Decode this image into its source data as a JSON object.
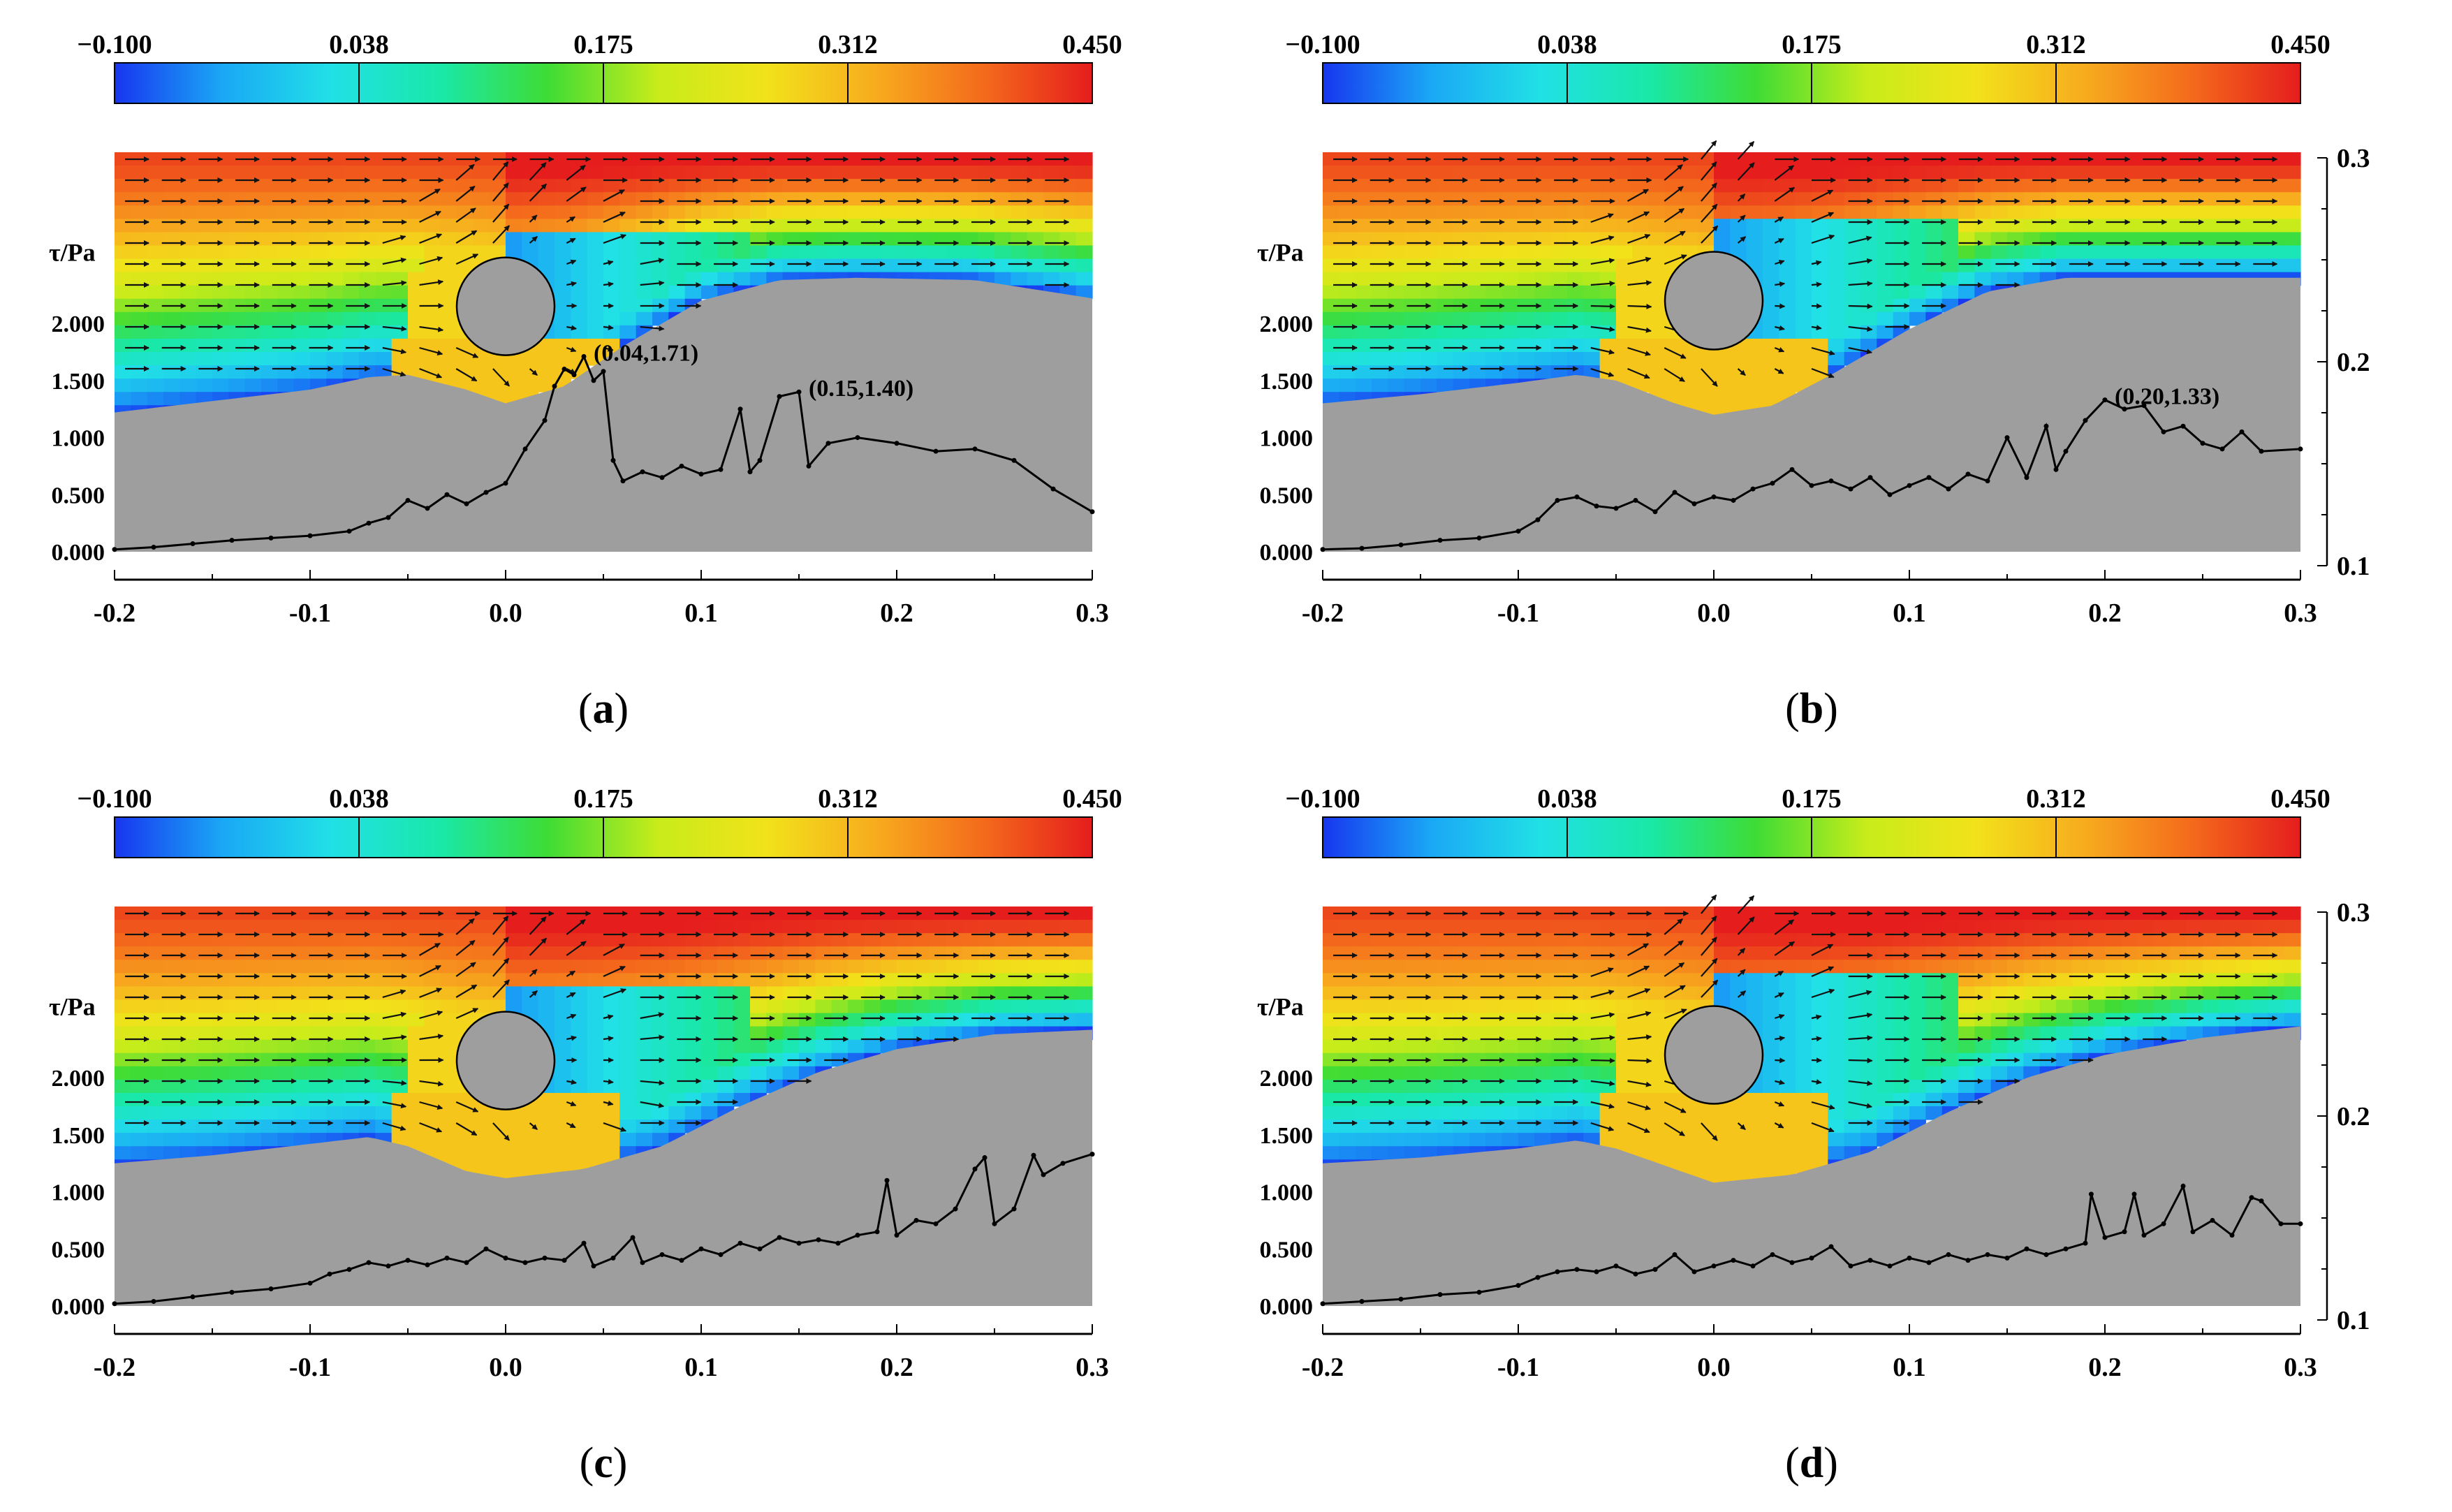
{
  "figure": {
    "description_colorbar_min_color": "#1a3cf5",
    "colors": {
      "ground": "#9e9e9e",
      "line": "#000000",
      "arrow": "#111111",
      "cmap": [
        "#1836f0",
        "#1aa8f5",
        "#21e0e6",
        "#19e8a8",
        "#3fdc35",
        "#c8ec1a",
        "#f2e21a",
        "#f7ac1e",
        "#f46a1c",
        "#e51d1d"
      ]
    }
  },
  "chart_data": [
    {
      "type": "line",
      "panel_label": "(a)",
      "panel_letter": "a",
      "colorbar": {
        "ticks": [
          "−0.100",
          "0.038",
          "0.175",
          "0.312",
          "0.450"
        ],
        "range": [
          -0.1,
          0.45
        ]
      },
      "ylabel": "τ/Pa",
      "y_ticks": [
        "0.000",
        "0.500",
        "1.000",
        "1.500",
        "2.000"
      ],
      "x_ticks": [
        "-0.2",
        "-0.1",
        "0.0",
        "0.1",
        "0.2",
        "0.3"
      ],
      "xlim": [
        -0.2,
        0.3
      ],
      "ylim": [
        0,
        3.5
      ],
      "right_axis": null,
      "cylinder": {
        "x": 0.0,
        "y": 2.15,
        "r": 0.025
      },
      "bed": [
        [
          -0.2,
          1.22
        ],
        [
          -0.15,
          1.32
        ],
        [
          -0.1,
          1.42
        ],
        [
          -0.07,
          1.53
        ],
        [
          -0.05,
          1.55
        ],
        [
          -0.02,
          1.42
        ],
        [
          0.0,
          1.3
        ],
        [
          0.03,
          1.45
        ],
        [
          0.06,
          1.8
        ],
        [
          0.1,
          2.2
        ],
        [
          0.14,
          2.38
        ],
        [
          0.18,
          2.4
        ],
        [
          0.24,
          2.38
        ],
        [
          0.3,
          2.22
        ]
      ],
      "tau_series": [
        [
          -0.2,
          0.02
        ],
        [
          -0.18,
          0.04
        ],
        [
          -0.16,
          0.07
        ],
        [
          -0.14,
          0.1
        ],
        [
          -0.12,
          0.12
        ],
        [
          -0.1,
          0.14
        ],
        [
          -0.08,
          0.18
        ],
        [
          -0.07,
          0.25
        ],
        [
          -0.06,
          0.3
        ],
        [
          -0.05,
          0.45
        ],
        [
          -0.04,
          0.38
        ],
        [
          -0.03,
          0.5
        ],
        [
          -0.02,
          0.42
        ],
        [
          -0.01,
          0.52
        ],
        [
          0.0,
          0.6
        ],
        [
          0.01,
          0.9
        ],
        [
          0.02,
          1.15
        ],
        [
          0.025,
          1.45
        ],
        [
          0.03,
          1.6
        ],
        [
          0.035,
          1.55
        ],
        [
          0.04,
          1.71
        ],
        [
          0.045,
          1.5
        ],
        [
          0.05,
          1.58
        ],
        [
          0.055,
          0.8
        ],
        [
          0.06,
          0.62
        ],
        [
          0.07,
          0.7
        ],
        [
          0.08,
          0.65
        ],
        [
          0.09,
          0.75
        ],
        [
          0.1,
          0.68
        ],
        [
          0.11,
          0.72
        ],
        [
          0.12,
          1.25
        ],
        [
          0.125,
          0.7
        ],
        [
          0.13,
          0.8
        ],
        [
          0.14,
          1.36
        ],
        [
          0.15,
          1.4
        ],
        [
          0.155,
          0.75
        ],
        [
          0.165,
          0.95
        ],
        [
          0.18,
          1.0
        ],
        [
          0.2,
          0.95
        ],
        [
          0.22,
          0.88
        ],
        [
          0.24,
          0.9
        ],
        [
          0.26,
          0.8
        ],
        [
          0.28,
          0.55
        ],
        [
          0.3,
          0.35
        ]
      ],
      "annotations": [
        {
          "text": "(0.04,1.71)",
          "x": 0.04,
          "y": 1.71
        },
        {
          "text": "(0.15,1.40)",
          "x": 0.15,
          "y": 1.4
        }
      ]
    },
    {
      "type": "line",
      "panel_label": "(b)",
      "panel_letter": "b",
      "colorbar": {
        "ticks": [
          "−0.100",
          "0.038",
          "0.175",
          "0.312",
          "0.450"
        ],
        "range": [
          -0.1,
          0.45
        ]
      },
      "ylabel": "τ/Pa",
      "y_ticks": [
        "0.000",
        "0.500",
        "1.000",
        "1.500",
        "2.000"
      ],
      "x_ticks": [
        "-0.2",
        "-0.1",
        "0.0",
        "0.1",
        "0.2",
        "0.3"
      ],
      "xlim": [
        -0.2,
        0.3
      ],
      "ylim": [
        0,
        3.5
      ],
      "right_axis": {
        "ticks": [
          "0.1",
          "0.2",
          "0.3"
        ],
        "range": [
          0.1,
          0.3
        ]
      },
      "cylinder": {
        "x": 0.0,
        "y": 2.2,
        "r": 0.025
      },
      "bed": [
        [
          -0.2,
          1.3
        ],
        [
          -0.15,
          1.38
        ],
        [
          -0.1,
          1.48
        ],
        [
          -0.07,
          1.55
        ],
        [
          -0.05,
          1.5
        ],
        [
          -0.02,
          1.3
        ],
        [
          0.0,
          1.2
        ],
        [
          0.03,
          1.28
        ],
        [
          0.06,
          1.55
        ],
        [
          0.1,
          1.95
        ],
        [
          0.14,
          2.28
        ],
        [
          0.18,
          2.4
        ],
        [
          0.24,
          2.4
        ],
        [
          0.3,
          2.4
        ]
      ],
      "tau_series": [
        [
          -0.2,
          0.02
        ],
        [
          -0.18,
          0.03
        ],
        [
          -0.16,
          0.06
        ],
        [
          -0.14,
          0.1
        ],
        [
          -0.12,
          0.12
        ],
        [
          -0.1,
          0.18
        ],
        [
          -0.09,
          0.28
        ],
        [
          -0.08,
          0.45
        ],
        [
          -0.07,
          0.48
        ],
        [
          -0.06,
          0.4
        ],
        [
          -0.05,
          0.38
        ],
        [
          -0.04,
          0.45
        ],
        [
          -0.03,
          0.35
        ],
        [
          -0.02,
          0.52
        ],
        [
          -0.01,
          0.42
        ],
        [
          0.0,
          0.48
        ],
        [
          0.01,
          0.45
        ],
        [
          0.02,
          0.55
        ],
        [
          0.03,
          0.6
        ],
        [
          0.04,
          0.72
        ],
        [
          0.05,
          0.58
        ],
        [
          0.06,
          0.62
        ],
        [
          0.07,
          0.55
        ],
        [
          0.08,
          0.65
        ],
        [
          0.09,
          0.5
        ],
        [
          0.1,
          0.58
        ],
        [
          0.11,
          0.65
        ],
        [
          0.12,
          0.55
        ],
        [
          0.13,
          0.68
        ],
        [
          0.14,
          0.62
        ],
        [
          0.15,
          1.0
        ],
        [
          0.16,
          0.65
        ],
        [
          0.17,
          1.1
        ],
        [
          0.175,
          0.72
        ],
        [
          0.18,
          0.88
        ],
        [
          0.19,
          1.15
        ],
        [
          0.2,
          1.33
        ],
        [
          0.21,
          1.25
        ],
        [
          0.22,
          1.28
        ],
        [
          0.23,
          1.05
        ],
        [
          0.24,
          1.1
        ],
        [
          0.25,
          0.95
        ],
        [
          0.26,
          0.9
        ],
        [
          0.27,
          1.05
        ],
        [
          0.28,
          0.88
        ],
        [
          0.3,
          0.9
        ]
      ],
      "annotations": [
        {
          "text": "(0.20,1.33)",
          "x": 0.2,
          "y": 1.33
        }
      ]
    },
    {
      "type": "line",
      "panel_label": "(c)",
      "panel_letter": "c",
      "colorbar": {
        "ticks": [
          "−0.100",
          "0.038",
          "0.175",
          "0.312",
          "0.450"
        ],
        "range": [
          -0.1,
          0.45
        ]
      },
      "ylabel": "τ/Pa",
      "y_ticks": [
        "0.000",
        "0.500",
        "1.000",
        "1.500",
        "2.000"
      ],
      "x_ticks": [
        "-0.2",
        "-0.1",
        "0.0",
        "0.1",
        "0.2",
        "0.3"
      ],
      "xlim": [
        -0.2,
        0.3
      ],
      "ylim": [
        0,
        3.5
      ],
      "right_axis": null,
      "cylinder": {
        "x": 0.0,
        "y": 2.15,
        "r": 0.025
      },
      "bed": [
        [
          -0.2,
          1.25
        ],
        [
          -0.15,
          1.32
        ],
        [
          -0.1,
          1.42
        ],
        [
          -0.07,
          1.48
        ],
        [
          -0.05,
          1.4
        ],
        [
          -0.02,
          1.18
        ],
        [
          0.0,
          1.12
        ],
        [
          0.04,
          1.2
        ],
        [
          0.08,
          1.4
        ],
        [
          0.12,
          1.75
        ],
        [
          0.16,
          2.05
        ],
        [
          0.2,
          2.25
        ],
        [
          0.25,
          2.38
        ],
        [
          0.3,
          2.42
        ]
      ],
      "tau_series": [
        [
          -0.2,
          0.02
        ],
        [
          -0.18,
          0.04
        ],
        [
          -0.16,
          0.08
        ],
        [
          -0.14,
          0.12
        ],
        [
          -0.12,
          0.15
        ],
        [
          -0.1,
          0.2
        ],
        [
          -0.09,
          0.28
        ],
        [
          -0.08,
          0.32
        ],
        [
          -0.07,
          0.38
        ],
        [
          -0.06,
          0.35
        ],
        [
          -0.05,
          0.4
        ],
        [
          -0.04,
          0.36
        ],
        [
          -0.03,
          0.42
        ],
        [
          -0.02,
          0.38
        ],
        [
          -0.01,
          0.5
        ],
        [
          0.0,
          0.42
        ],
        [
          0.01,
          0.38
        ],
        [
          0.02,
          0.42
        ],
        [
          0.03,
          0.4
        ],
        [
          0.04,
          0.55
        ],
        [
          0.045,
          0.35
        ],
        [
          0.055,
          0.42
        ],
        [
          0.065,
          0.6
        ],
        [
          0.07,
          0.38
        ],
        [
          0.08,
          0.45
        ],
        [
          0.09,
          0.4
        ],
        [
          0.1,
          0.5
        ],
        [
          0.11,
          0.45
        ],
        [
          0.12,
          0.55
        ],
        [
          0.13,
          0.5
        ],
        [
          0.14,
          0.6
        ],
        [
          0.15,
          0.55
        ],
        [
          0.16,
          0.58
        ],
        [
          0.17,
          0.55
        ],
        [
          0.18,
          0.62
        ],
        [
          0.19,
          0.65
        ],
        [
          0.195,
          1.1
        ],
        [
          0.2,
          0.62
        ],
        [
          0.21,
          0.75
        ],
        [
          0.22,
          0.72
        ],
        [
          0.23,
          0.85
        ],
        [
          0.24,
          1.2
        ],
        [
          0.245,
          1.3
        ],
        [
          0.25,
          0.72
        ],
        [
          0.26,
          0.85
        ],
        [
          0.27,
          1.32
        ],
        [
          0.275,
          1.15
        ],
        [
          0.285,
          1.25
        ],
        [
          0.3,
          1.33
        ]
      ],
      "annotations": []
    },
    {
      "type": "line",
      "panel_label": "(d)",
      "panel_letter": "d",
      "colorbar": {
        "ticks": [
          "−0.100",
          "0.038",
          "0.175",
          "0.312",
          "0.450"
        ],
        "range": [
          -0.1,
          0.45
        ]
      },
      "ylabel": "τ/Pa",
      "y_ticks": [
        "0.000",
        "0.500",
        "1.000",
        "1.500",
        "2.000"
      ],
      "x_ticks": [
        "-0.2",
        "-0.1",
        "0.0",
        "0.1",
        "0.2",
        "0.3"
      ],
      "xlim": [
        -0.2,
        0.3
      ],
      "ylim": [
        0,
        3.5
      ],
      "right_axis": {
        "ticks": [
          "0.1",
          "0.2",
          "0.3"
        ],
        "range": [
          0.1,
          0.3
        ]
      },
      "cylinder": {
        "x": 0.0,
        "y": 2.2,
        "r": 0.025
      },
      "bed": [
        [
          -0.2,
          1.25
        ],
        [
          -0.15,
          1.3
        ],
        [
          -0.1,
          1.38
        ],
        [
          -0.07,
          1.45
        ],
        [
          -0.05,
          1.38
        ],
        [
          -0.02,
          1.2
        ],
        [
          0.0,
          1.08
        ],
        [
          0.04,
          1.15
        ],
        [
          0.08,
          1.35
        ],
        [
          0.12,
          1.7
        ],
        [
          0.16,
          2.0
        ],
        [
          0.2,
          2.2
        ],
        [
          0.25,
          2.35
        ],
        [
          0.3,
          2.45
        ]
      ],
      "tau_series": [
        [
          -0.2,
          0.02
        ],
        [
          -0.18,
          0.04
        ],
        [
          -0.16,
          0.06
        ],
        [
          -0.14,
          0.1
        ],
        [
          -0.12,
          0.12
        ],
        [
          -0.1,
          0.18
        ],
        [
          -0.09,
          0.25
        ],
        [
          -0.08,
          0.3
        ],
        [
          -0.07,
          0.32
        ],
        [
          -0.06,
          0.3
        ],
        [
          -0.05,
          0.35
        ],
        [
          -0.04,
          0.28
        ],
        [
          -0.03,
          0.32
        ],
        [
          -0.02,
          0.45
        ],
        [
          -0.01,
          0.3
        ],
        [
          0.0,
          0.35
        ],
        [
          0.01,
          0.4
        ],
        [
          0.02,
          0.35
        ],
        [
          0.03,
          0.45
        ],
        [
          0.04,
          0.38
        ],
        [
          0.05,
          0.42
        ],
        [
          0.06,
          0.52
        ],
        [
          0.07,
          0.35
        ],
        [
          0.08,
          0.4
        ],
        [
          0.09,
          0.35
        ],
        [
          0.1,
          0.42
        ],
        [
          0.11,
          0.38
        ],
        [
          0.12,
          0.45
        ],
        [
          0.13,
          0.4
        ],
        [
          0.14,
          0.45
        ],
        [
          0.15,
          0.42
        ],
        [
          0.16,
          0.5
        ],
        [
          0.17,
          0.45
        ],
        [
          0.18,
          0.5
        ],
        [
          0.19,
          0.55
        ],
        [
          0.193,
          0.98
        ],
        [
          0.2,
          0.6
        ],
        [
          0.21,
          0.65
        ],
        [
          0.215,
          0.98
        ],
        [
          0.22,
          0.62
        ],
        [
          0.23,
          0.72
        ],
        [
          0.24,
          1.05
        ],
        [
          0.245,
          0.65
        ],
        [
          0.255,
          0.75
        ],
        [
          0.265,
          0.62
        ],
        [
          0.275,
          0.95
        ],
        [
          0.28,
          0.92
        ],
        [
          0.29,
          0.72
        ],
        [
          0.3,
          0.72
        ]
      ],
      "annotations": []
    }
  ]
}
